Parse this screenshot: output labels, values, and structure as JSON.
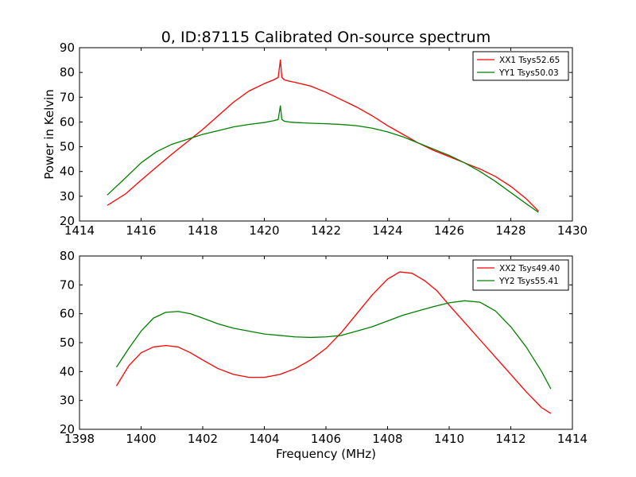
{
  "figure": {
    "title": "0, ID:87115 Calibrated On-source spectrum",
    "ylabel": "Power in Kelvin",
    "xlabel": "Frequency (MHz)"
  },
  "colors": {
    "red": "#ff0000",
    "green": "#008000"
  },
  "chart_data": [
    {
      "type": "line",
      "xlim": [
        1414,
        1430
      ],
      "ylim": [
        20,
        90
      ],
      "xticks": [
        1414,
        1416,
        1418,
        1420,
        1422,
        1424,
        1426,
        1428,
        1430
      ],
      "yticks": [
        20,
        30,
        40,
        50,
        60,
        70,
        80,
        90
      ],
      "legend_position": "top-right",
      "grid": false,
      "series": [
        {
          "name": "XX1 Tsys52.65",
          "color": "red",
          "x": [
            1414.9,
            1415.5,
            1416,
            1416.5,
            1417,
            1417.5,
            1418,
            1418.5,
            1419,
            1419.5,
            1420,
            1420.3,
            1420.45,
            1420.52,
            1420.57,
            1420.65,
            1420.8,
            1421,
            1421.5,
            1422,
            1422.5,
            1423,
            1423.5,
            1424,
            1424.5,
            1425,
            1425.5,
            1426,
            1426.5,
            1427,
            1427.5,
            1428,
            1428.5,
            1428.9
          ],
          "y": [
            26.3,
            31,
            36.5,
            41.8,
            47,
            52,
            57,
            62.5,
            68,
            72.5,
            75.5,
            77,
            78,
            85,
            78,
            77,
            76.5,
            76,
            74.5,
            72,
            69,
            66,
            62.5,
            58.5,
            55,
            51.5,
            48.5,
            46,
            43.5,
            41,
            38,
            34,
            29,
            24
          ]
        },
        {
          "name": "YY1 Tsys50.03",
          "color": "green",
          "x": [
            1414.9,
            1415.5,
            1416,
            1416.5,
            1417,
            1417.5,
            1418,
            1418.5,
            1419,
            1419.5,
            1420,
            1420.3,
            1420.45,
            1420.52,
            1420.57,
            1420.65,
            1420.8,
            1421,
            1421.5,
            1422,
            1422.5,
            1423,
            1423.5,
            1424,
            1424.5,
            1425,
            1425.5,
            1426,
            1426.5,
            1427,
            1427.5,
            1428,
            1428.5,
            1428.9
          ],
          "y": [
            30.5,
            37.5,
            43.5,
            48,
            51,
            53,
            55,
            56.5,
            58,
            59,
            59.8,
            60.5,
            61,
            66.5,
            61,
            60.3,
            60,
            59.8,
            59.5,
            59.3,
            59,
            58.5,
            57.5,
            56,
            54,
            51.5,
            49,
            46.5,
            43.5,
            40,
            36,
            31.5,
            27,
            23.5
          ]
        }
      ]
    },
    {
      "type": "line",
      "xlim": [
        1398,
        1414
      ],
      "ylim": [
        20,
        80
      ],
      "xticks": [
        1398,
        1400,
        1402,
        1404,
        1406,
        1408,
        1410,
        1412,
        1414
      ],
      "yticks": [
        20,
        30,
        40,
        50,
        60,
        70,
        80
      ],
      "legend_position": "top-right",
      "grid": false,
      "series": [
        {
          "name": "XX2 Tsys49.40",
          "color": "red",
          "x": [
            1399.2,
            1399.6,
            1400,
            1400.4,
            1400.8,
            1401.2,
            1401.6,
            1402,
            1402.5,
            1403,
            1403.5,
            1404,
            1404.5,
            1405,
            1405.5,
            1406,
            1406.5,
            1407,
            1407.5,
            1408,
            1408.4,
            1408.8,
            1409.2,
            1409.6,
            1410,
            1410.5,
            1411,
            1411.5,
            1412,
            1412.5,
            1413,
            1413.3
          ],
          "y": [
            35,
            42,
            46.5,
            48.5,
            49,
            48.5,
            46.5,
            44,
            41,
            39,
            38,
            38,
            39,
            41,
            44,
            48,
            53.5,
            60,
            66.5,
            72,
            74.5,
            74,
            71.5,
            68,
            63,
            57,
            51,
            45,
            39,
            33,
            27.5,
            25.5
          ]
        },
        {
          "name": "YY2 Tsys55.41",
          "color": "green",
          "x": [
            1399.2,
            1399.6,
            1400,
            1400.4,
            1400.8,
            1401.2,
            1401.6,
            1402,
            1402.5,
            1403,
            1403.5,
            1404,
            1404.5,
            1405,
            1405.5,
            1406,
            1406.5,
            1407,
            1407.5,
            1408,
            1408.5,
            1409,
            1409.5,
            1410,
            1410.5,
            1411,
            1411.5,
            1412,
            1412.5,
            1413,
            1413.3
          ],
          "y": [
            41.5,
            48,
            54,
            58.5,
            60.5,
            60.8,
            60,
            58.5,
            56.5,
            55,
            54,
            53,
            52.5,
            52,
            51.8,
            52,
            52.5,
            54,
            55.5,
            57.5,
            59.5,
            61,
            62.5,
            63.8,
            64.5,
            64,
            61,
            55.5,
            48.5,
            40,
            34
          ]
        }
      ]
    }
  ]
}
